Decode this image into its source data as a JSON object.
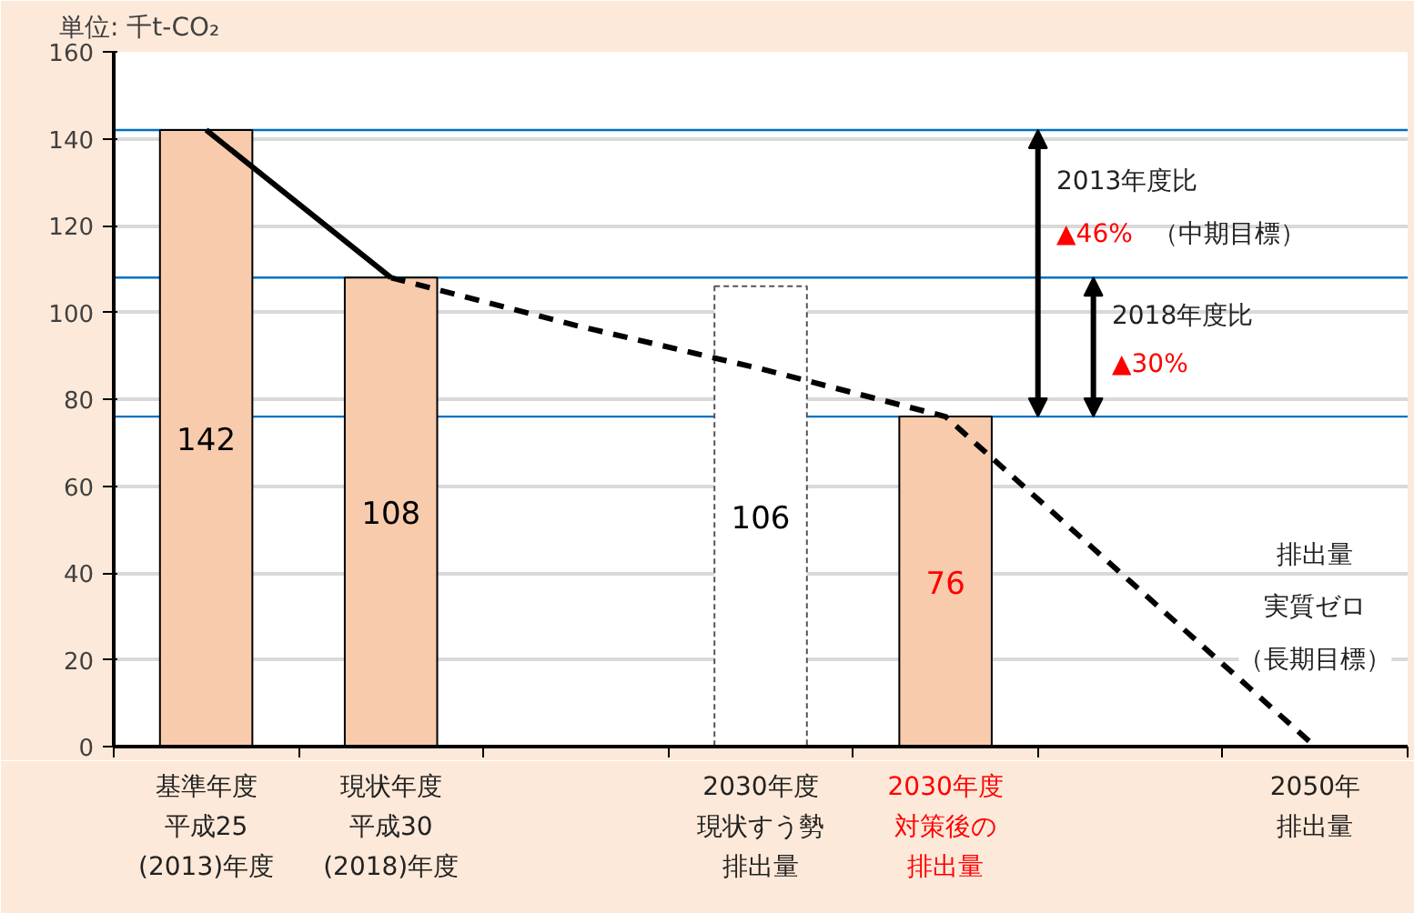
{
  "chart_data": {
    "type": "bar",
    "ylabel": "単位: 千t-CO₂",
    "categories": [
      "基準年度平成25(2013)年度",
      "現状年度平成30(2018)年度",
      null,
      "2030年度現状すう勢排出量",
      "2030年度対策後の排出量",
      null,
      "2050年排出量"
    ],
    "series": [
      {
        "values": [
          142,
          108,
          null,
          106,
          76,
          null,
          null
        ],
        "value_labels": [
          "142",
          "108",
          null,
          "106",
          "76",
          null,
          null
        ],
        "colors": [
          "#f8cbad",
          "#f8cbad",
          null,
          "#ffffff",
          "#f8cbad",
          null,
          null
        ]
      },
      {
        "type": "line",
        "color": "#000000",
        "line_style": "solid",
        "values": [
          142,
          108,
          null,
          null,
          null,
          null,
          null
        ]
      },
      {
        "type": "line",
        "color": "#000000",
        "line_style": "dashed",
        "values": [
          null,
          108,
          97,
          87,
          76,
          38,
          0
        ]
      }
    ],
    "ylim": [
      0,
      160
    ],
    "yticks": [
      0,
      20,
      40,
      60,
      80,
      100,
      120,
      140,
      160
    ],
    "grid": "y",
    "marker": "none",
    "ref_lines": [
      {
        "axis": "y",
        "value": 142,
        "color": "#0070c0"
      },
      {
        "axis": "y",
        "value": 108,
        "color": "#0070c0"
      },
      {
        "axis": "y",
        "value": 76,
        "color": "#0070c0"
      }
    ],
    "annotations": [
      "2013年度比",
      "▲46%",
      "（中期目標）",
      "2018年度比",
      "▲30%",
      "排出量",
      "実質ゼロ",
      "（長期目標）"
    ]
  }
}
